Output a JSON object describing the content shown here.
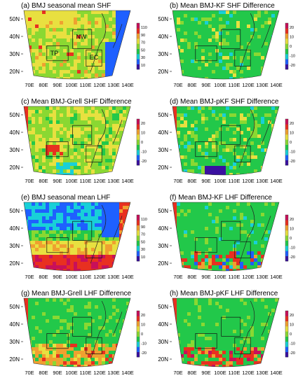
{
  "figure": {
    "panels": [
      {
        "id": "a",
        "title": "(a) BMJ seasonal mean SHF",
        "variable": "SHF",
        "kind": "mean",
        "colorbar_ticks": [
          "110",
          "90",
          "70",
          "50",
          "30",
          "10"
        ],
        "colors": [
          "#3a10a0",
          "#1e60ff",
          "#18d0d8",
          "#22c84a",
          "#8ad832",
          "#e8e040",
          "#f0a030",
          "#e83020",
          "#c8105a"
        ],
        "region_labels": [
          "TP",
          "NW",
          "EC"
        ],
        "chart_data": {
          "type": "heatmap",
          "field": "seasonal mean sensible heat flux",
          "value_range": [
            10,
            110
          ],
          "dominant": "green-yellow over land, blue over ocean"
        }
      },
      {
        "id": "b",
        "title": "(b) Mean BMJ-KF SHF Difference",
        "variable": "SHF",
        "kind": "diff",
        "colorbar_ticks": [
          "20",
          "10",
          "0",
          "-10",
          "-20"
        ],
        "colors": [
          "#3a10a0",
          "#1e60ff",
          "#18d0d8",
          "#22c84a",
          "#8ad832",
          "#e8e040",
          "#f0a030",
          "#e83020",
          "#c8105a"
        ],
        "region_labels": [],
        "chart_data": {
          "type": "heatmap",
          "field": "BMJ minus KF sensible heat flux",
          "value_range": [
            -20,
            20
          ],
          "dominant": "green (near zero)"
        }
      },
      {
        "id": "c",
        "title": "(c) Mean BMJ-Grell SHF Difference",
        "variable": "SHF",
        "kind": "diff",
        "colorbar_ticks": [
          "20",
          "10",
          "0",
          "-10",
          "-20"
        ],
        "colors": [
          "#3a10a0",
          "#1e60ff",
          "#18d0d8",
          "#22c84a",
          "#8ad832",
          "#e8e040",
          "#f0a030",
          "#e83020",
          "#c8105a"
        ],
        "region_labels": [],
        "chart_data": {
          "type": "heatmap",
          "field": "BMJ minus Grell sensible heat flux",
          "value_range": [
            -20,
            20
          ],
          "dominant": "yellow-green"
        }
      },
      {
        "id": "d",
        "title": "(d) Mean BMJ-pKF SHF Difference",
        "variable": "SHF",
        "kind": "diff",
        "colorbar_ticks": [
          "20",
          "10",
          "0",
          "-10",
          "-20"
        ],
        "colors": [
          "#3a10a0",
          "#1e60ff",
          "#18d0d8",
          "#22c84a",
          "#8ad832",
          "#e8e040",
          "#f0a030",
          "#e83020",
          "#c8105a"
        ],
        "region_labels": [],
        "chart_data": {
          "type": "heatmap",
          "field": "BMJ minus pKF sensible heat flux",
          "value_range": [
            -20,
            20
          ],
          "dominant": "green (near zero)"
        }
      },
      {
        "id": "e",
        "title": "(e) BMJ seasonal mean LHF",
        "variable": "LHF",
        "kind": "mean",
        "colorbar_ticks": [
          "110",
          "90",
          "70",
          "50",
          "30",
          "10"
        ],
        "colors": [
          "#3a10a0",
          "#1e60ff",
          "#18d0d8",
          "#22c84a",
          "#8ad832",
          "#e8e040",
          "#f0a030",
          "#e83020",
          "#c8105a"
        ],
        "region_labels": [],
        "chart_data": {
          "type": "heatmap",
          "field": "seasonal mean latent heat flux",
          "value_range": [
            10,
            110
          ],
          "dominant": "blue north, red-orange south"
        }
      },
      {
        "id": "f",
        "title": "(f) Mean BMJ-KF LHF Difference",
        "variable": "LHF",
        "kind": "diff",
        "colorbar_ticks": [
          "20",
          "10",
          "0",
          "-10",
          "-20"
        ],
        "colors": [
          "#3a10a0",
          "#1e60ff",
          "#18d0d8",
          "#22c84a",
          "#8ad832",
          "#e8e040",
          "#f0a030",
          "#e83020",
          "#c8105a"
        ],
        "region_labels": [],
        "chart_data": {
          "type": "heatmap",
          "field": "BMJ minus KF latent heat flux",
          "value_range": [
            -20,
            20
          ],
          "dominant": "green with red/blue patches in south"
        }
      },
      {
        "id": "g",
        "title": "(g) Mean BMJ-Grell LHF Difference",
        "variable": "LHF",
        "kind": "diff",
        "colorbar_ticks": [
          "20",
          "10",
          "0",
          "-10",
          "-20"
        ],
        "colors": [
          "#3a10a0",
          "#1e60ff",
          "#18d0d8",
          "#22c84a",
          "#8ad832",
          "#e8e040",
          "#f0a030",
          "#e83020",
          "#c8105a"
        ],
        "region_labels": [],
        "chart_data": {
          "type": "heatmap",
          "field": "BMJ minus Grell latent heat flux",
          "value_range": [
            -20,
            20
          ],
          "dominant": "green north, orange-red south"
        }
      },
      {
        "id": "h",
        "title": "(h) Mean BMJ-pKF LHF Difference",
        "variable": "LHF",
        "kind": "diff",
        "colorbar_ticks": [
          "20",
          "10",
          "0",
          "-10",
          "-20"
        ],
        "colors": [
          "#3a10a0",
          "#1e60ff",
          "#18d0d8",
          "#22c84a",
          "#8ad832",
          "#e8e040",
          "#f0a030",
          "#e83020",
          "#c8105a"
        ],
        "region_labels": [],
        "chart_data": {
          "type": "heatmap",
          "field": "BMJ minus pKF latent heat flux",
          "value_range": [
            -20,
            20
          ],
          "dominant": "green north, red patches south"
        }
      }
    ],
    "lat_ticks": [
      "50N",
      "40N",
      "30N",
      "20N"
    ],
    "lon_ticks": [
      "70E",
      "80E",
      "90E",
      "100E",
      "110E",
      "120E",
      "130E",
      "140E"
    ]
  },
  "chart_data": [
    {
      "type": "heatmap",
      "panel": "a",
      "title": "(a) BMJ seasonal mean SHF",
      "colorbar": [
        10,
        30,
        50,
        70,
        90,
        110
      ],
      "lat": [
        "20N",
        "30N",
        "40N",
        "50N"
      ],
      "lon": [
        "70E",
        "80E",
        "90E",
        "100E",
        "110E",
        "120E",
        "130E",
        "140E"
      ]
    },
    {
      "type": "heatmap",
      "panel": "b",
      "title": "(b) Mean BMJ-KF SHF Difference",
      "colorbar": [
        -20,
        -10,
        0,
        10,
        20
      ]
    },
    {
      "type": "heatmap",
      "panel": "c",
      "title": "(c) Mean BMJ-Grell SHF Difference",
      "colorbar": [
        -20,
        -10,
        0,
        10,
        20
      ]
    },
    {
      "type": "heatmap",
      "panel": "d",
      "title": "(d) Mean BMJ-pKF SHF Difference",
      "colorbar": [
        -20,
        -10,
        0,
        10,
        20
      ]
    },
    {
      "type": "heatmap",
      "panel": "e",
      "title": "(e) BMJ seasonal mean LHF",
      "colorbar": [
        10,
        30,
        50,
        70,
        90,
        110
      ]
    },
    {
      "type": "heatmap",
      "panel": "f",
      "title": "(f) Mean BMJ-KF LHF Difference",
      "colorbar": [
        -20,
        -10,
        0,
        10,
        20
      ]
    },
    {
      "type": "heatmap",
      "panel": "g",
      "title": "(g) Mean BMJ-Grell LHF Difference",
      "colorbar": [
        -20,
        -10,
        0,
        10,
        20
      ]
    },
    {
      "type": "heatmap",
      "panel": "h",
      "title": "(h) Mean BMJ-pKF LHF Difference",
      "colorbar": [
        -20,
        -10,
        0,
        10,
        20
      ]
    }
  ]
}
